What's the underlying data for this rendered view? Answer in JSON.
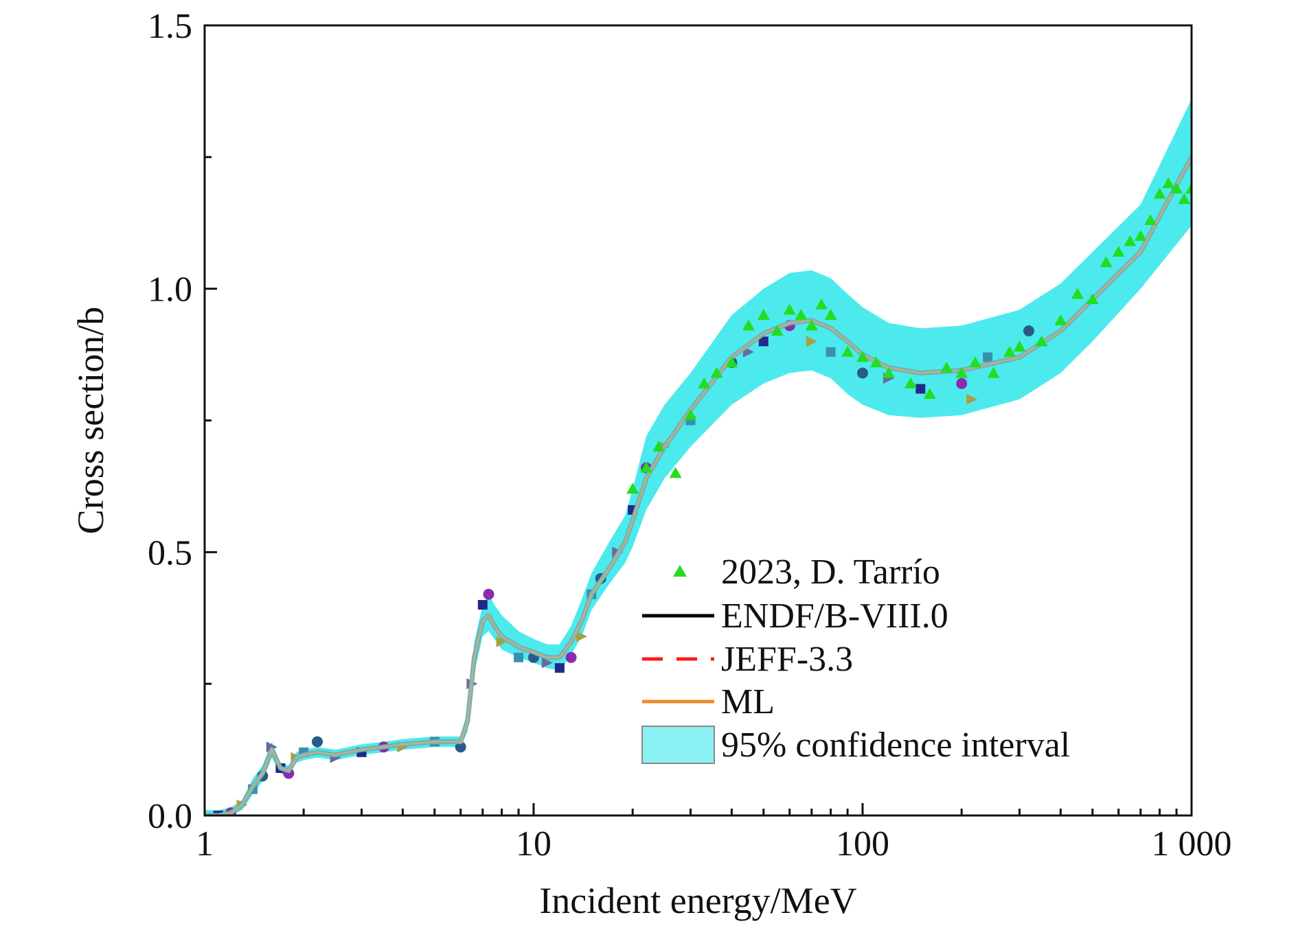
{
  "chart_data": {
    "type": "scatter",
    "title": "",
    "xlabel": "Incident energy/MeV",
    "ylabel": "Cross section/b",
    "xscale": "log",
    "xlim": [
      1,
      1000
    ],
    "ylim": [
      0,
      1.5
    ],
    "x_ticks": [
      {
        "value": 1,
        "label": "1"
      },
      {
        "value": 10,
        "label": "10"
      },
      {
        "value": 100,
        "label": "100"
      },
      {
        "value": 1000,
        "label": "1 000"
      }
    ],
    "y_ticks": [
      {
        "value": 0.0,
        "label": "0.0"
      },
      {
        "value": 0.5,
        "label": "0.5"
      },
      {
        "value": 1.0,
        "label": "1.0"
      },
      {
        "value": 1.5,
        "label": "1.5"
      }
    ],
    "grid": false,
    "legend_position": "bottom-right",
    "legend": [
      {
        "label": "2023, D. Tarrío",
        "kind": "marker-triangle",
        "color": "#22dd22"
      },
      {
        "label": "ENDF/B-VIII.0",
        "kind": "line-solid",
        "color": "#000000"
      },
      {
        "label": "JEFF-3.3",
        "kind": "line-dashed",
        "color": "#ff1a1a"
      },
      {
        "label": "ML",
        "kind": "line-solid",
        "color": "#f08a24"
      },
      {
        "label": "95% confidence interval",
        "kind": "band",
        "color": "#2ee6ea"
      }
    ],
    "curve": {
      "x": [
        1.0,
        1.1,
        1.2,
        1.3,
        1.4,
        1.5,
        1.6,
        1.7,
        1.8,
        1.9,
        2.0,
        2.2,
        2.5,
        3.0,
        3.5,
        4.0,
        5.0,
        6.0,
        6.3,
        6.6,
        7.0,
        7.3,
        7.6,
        8.0,
        9.0,
        10.0,
        11.0,
        12.0,
        13.0,
        14.0,
        15.0,
        17.0,
        19.0,
        20.0,
        22.0,
        25.0,
        30.0,
        40.0,
        50.0,
        60.0,
        70.0,
        80.0,
        90.0,
        100.0,
        120.0,
        150.0,
        200.0,
        300.0,
        400.0,
        500.0,
        700.0,
        1000.0
      ],
      "y": [
        0.0,
        0.0,
        0.005,
        0.02,
        0.055,
        0.08,
        0.125,
        0.09,
        0.085,
        0.11,
        0.115,
        0.12,
        0.115,
        0.125,
        0.13,
        0.135,
        0.14,
        0.14,
        0.18,
        0.3,
        0.37,
        0.38,
        0.36,
        0.34,
        0.32,
        0.31,
        0.3,
        0.3,
        0.33,
        0.37,
        0.42,
        0.47,
        0.52,
        0.56,
        0.64,
        0.7,
        0.77,
        0.87,
        0.915,
        0.935,
        0.94,
        0.925,
        0.9,
        0.875,
        0.85,
        0.84,
        0.845,
        0.87,
        0.92,
        0.98,
        1.07,
        1.25
      ],
      "band_lower": [
        0.0,
        0.0,
        0.0,
        0.01,
        0.04,
        0.065,
        0.11,
        0.08,
        0.075,
        0.1,
        0.105,
        0.11,
        0.105,
        0.115,
        0.12,
        0.125,
        0.13,
        0.13,
        0.16,
        0.27,
        0.34,
        0.35,
        0.335,
        0.315,
        0.3,
        0.29,
        0.28,
        0.275,
        0.305,
        0.34,
        0.39,
        0.44,
        0.48,
        0.51,
        0.58,
        0.64,
        0.7,
        0.78,
        0.82,
        0.84,
        0.845,
        0.83,
        0.8,
        0.78,
        0.76,
        0.755,
        0.76,
        0.79,
        0.84,
        0.9,
        1.0,
        1.12
      ],
      "band_upper": [
        0.01,
        0.01,
        0.015,
        0.03,
        0.07,
        0.095,
        0.14,
        0.1,
        0.095,
        0.12,
        0.125,
        0.13,
        0.125,
        0.135,
        0.14,
        0.145,
        0.15,
        0.15,
        0.2,
        0.33,
        0.4,
        0.42,
        0.4,
        0.38,
        0.35,
        0.335,
        0.325,
        0.325,
        0.36,
        0.41,
        0.46,
        0.52,
        0.57,
        0.62,
        0.72,
        0.78,
        0.84,
        0.95,
        1.0,
        1.03,
        1.035,
        1.02,
        0.99,
        0.965,
        0.935,
        0.925,
        0.93,
        0.96,
        1.01,
        1.07,
        1.16,
        1.36
      ]
    },
    "tarrio": {
      "x": [
        20,
        22,
        24,
        27,
        30,
        33,
        36,
        40,
        45,
        50,
        55,
        60,
        65,
        70,
        75,
        80,
        90,
        100,
        110,
        120,
        140,
        160,
        180,
        200,
        220,
        250,
        280,
        300,
        350,
        400,
        450,
        500,
        550,
        600,
        650,
        700,
        750,
        800,
        850,
        900,
        950,
        1000
      ],
      "y": [
        0.62,
        0.66,
        0.7,
        0.65,
        0.76,
        0.82,
        0.84,
        0.86,
        0.93,
        0.95,
        0.92,
        0.96,
        0.95,
        0.93,
        0.97,
        0.95,
        0.88,
        0.87,
        0.86,
        0.84,
        0.82,
        0.8,
        0.85,
        0.84,
        0.86,
        0.84,
        0.88,
        0.89,
        0.9,
        0.94,
        0.99,
        0.98,
        1.05,
        1.07,
        1.09,
        1.1,
        1.13,
        1.18,
        1.2,
        1.19,
        1.17,
        1.19
      ]
    },
    "other_data": {
      "x": [
        1.1,
        1.2,
        1.3,
        1.4,
        1.5,
        1.6,
        1.7,
        1.8,
        1.9,
        2.0,
        2.2,
        2.5,
        3.0,
        3.5,
        4.0,
        5.0,
        6.0,
        6.5,
        7.0,
        7.3,
        8.0,
        9.0,
        10.0,
        11.0,
        12.0,
        13.0,
        14.0,
        15.0,
        16.0,
        18.0,
        20.0,
        22.0,
        25.0,
        30.0,
        40.0,
        45.0,
        50.0,
        60.0,
        70.0,
        80.0,
        100.0,
        120.0,
        150.0,
        200.0,
        215.0,
        240.0,
        320.0
      ],
      "y": [
        0.0,
        0.005,
        0.02,
        0.05,
        0.075,
        0.13,
        0.09,
        0.08,
        0.11,
        0.12,
        0.14,
        0.11,
        0.12,
        0.13,
        0.13,
        0.14,
        0.13,
        0.25,
        0.4,
        0.42,
        0.33,
        0.3,
        0.3,
        0.29,
        0.28,
        0.3,
        0.34,
        0.42,
        0.45,
        0.5,
        0.58,
        0.66,
        0.7,
        0.75,
        0.86,
        0.88,
        0.9,
        0.93,
        0.9,
        0.88,
        0.84,
        0.83,
        0.81,
        0.82,
        0.79,
        0.87,
        0.92
      ]
    }
  }
}
